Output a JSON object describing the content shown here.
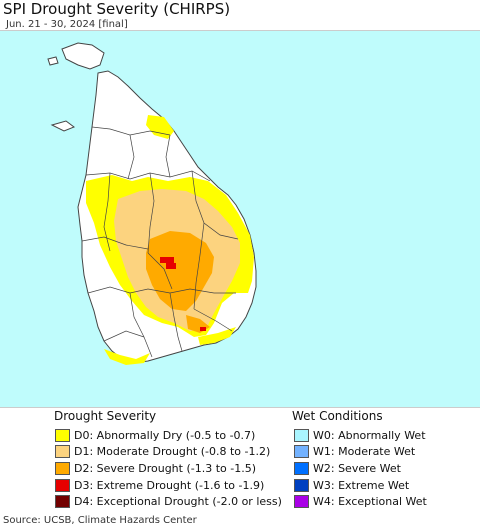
{
  "header": {
    "title": "SPI Drought Severity (CHIRPS)",
    "subtitle": "Jun. 21 - 30, 2024 [final]"
  },
  "map": {
    "ocean_color": "#bffcfc",
    "land_color": "#ffffff",
    "boundary_color": "#444444"
  },
  "legend": {
    "drought": {
      "heading": "Drought Severity",
      "items": [
        {
          "label": "D0: Abnormally Dry (-0.5 to -0.7)",
          "color": "#ffff00"
        },
        {
          "label": "D1: Moderate Drought (-0.8 to -1.2)",
          "color": "#fcd37f"
        },
        {
          "label": "D2: Severe Drought (-1.3 to -1.5)",
          "color": "#ffaa00"
        },
        {
          "label": "D3: Extreme Drought (-1.6 to -1.9)",
          "color": "#e60000"
        },
        {
          "label": "D4: Exceptional Drought (-2.0 or less)",
          "color": "#730000"
        }
      ]
    },
    "wet": {
      "heading": "Wet Conditions",
      "items": [
        {
          "label": "W0: Abnormally Wet",
          "color": "#aaf5ff"
        },
        {
          "label": "W1: Moderate Wet",
          "color": "#73b2ff"
        },
        {
          "label": "W2: Severe Wet",
          "color": "#0070ff"
        },
        {
          "label": "W3: Extreme Wet",
          "color": "#0040c0"
        },
        {
          "label": "W4: Exceptional Wet",
          "color": "#a900e6"
        }
      ]
    }
  },
  "footer": {
    "source": "Source: UCSB, Climate Hazards Center"
  }
}
